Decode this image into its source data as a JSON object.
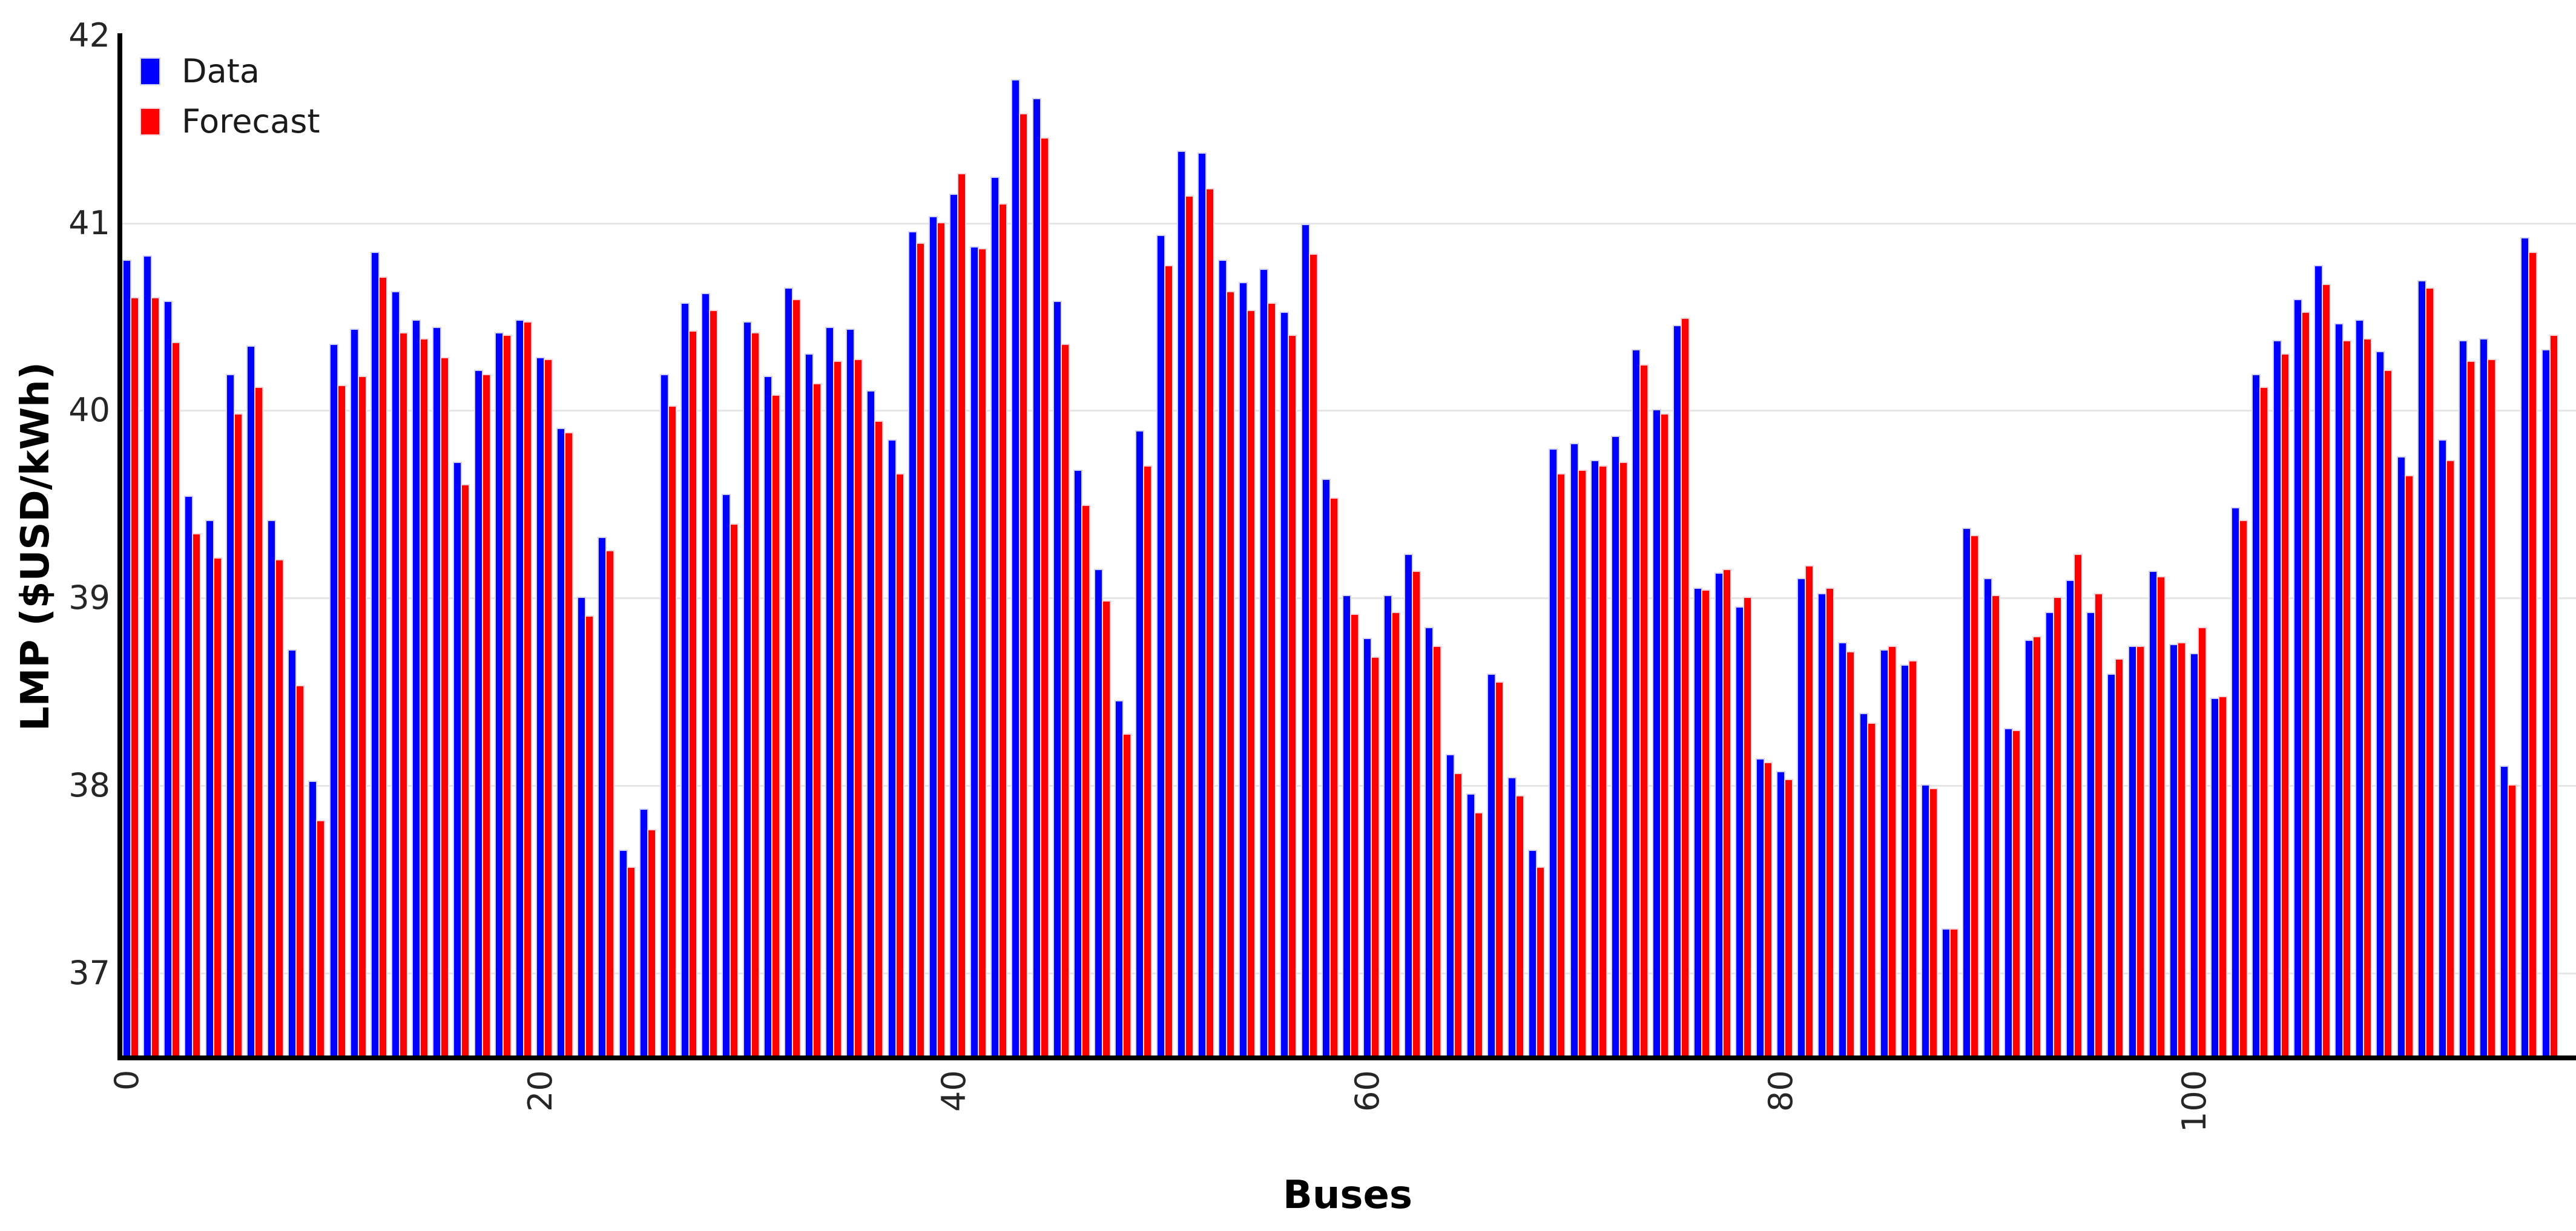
{
  "chart_data": {
    "type": "bar",
    "title": "",
    "xlabel": "Buses",
    "ylabel": "LMP ($USD/kWh)",
    "ylim": [
      36.55,
      42
    ],
    "yticks": [
      37,
      38,
      39,
      40,
      41,
      42
    ],
    "xticks": [
      0,
      20,
      40,
      60,
      80,
      100
    ],
    "grid": "horizontal",
    "legend_position": "upper-left",
    "n_buses": 118,
    "series": [
      {
        "name": "Data",
        "color": "#0000ff",
        "values": [
          40.8,
          40.82,
          40.58,
          39.54,
          39.41,
          40.19,
          40.34,
          39.41,
          38.72,
          38.02,
          40.35,
          40.43,
          40.84,
          40.63,
          40.48,
          40.44,
          39.72,
          40.21,
          40.41,
          40.48,
          40.28,
          39.9,
          39.0,
          39.32,
          37.65,
          37.87,
          40.19,
          40.57,
          40.62,
          39.55,
          40.47,
          40.18,
          40.65,
          40.3,
          40.44,
          40.43,
          40.1,
          39.84,
          40.95,
          41.03,
          41.15,
          40.87,
          41.24,
          41.76,
          41.66,
          40.58,
          39.68,
          39.15,
          38.45,
          39.89,
          40.93,
          41.38,
          41.37,
          40.8,
          40.68,
          40.75,
          40.52,
          40.99,
          39.63,
          39.01,
          38.78,
          39.01,
          39.23,
          38.84,
          38.16,
          37.95,
          38.59,
          38.04,
          37.65,
          39.79,
          39.82,
          39.73,
          39.86,
          40.32,
          40.0,
          40.45,
          39.05,
          39.13,
          38.95,
          38.14,
          38.07,
          39.1,
          39.02,
          38.76,
          38.38,
          38.72,
          38.64,
          38.0,
          37.23,
          39.37,
          39.1,
          38.3,
          38.77,
          38.92,
          39.09,
          38.92,
          38.59,
          38.74,
          39.14,
          38.75,
          38.7,
          38.46,
          39.48,
          40.19,
          40.37,
          40.59,
          40.77,
          40.46,
          40.48,
          40.31,
          39.75,
          40.69,
          39.84,
          40.37,
          40.38,
          38.1,
          40.92,
          40.32
        ]
      },
      {
        "name": "Forecast",
        "color": "#ff0000",
        "values": [
          40.6,
          40.6,
          40.36,
          39.34,
          39.21,
          39.98,
          40.12,
          39.2,
          38.53,
          37.81,
          40.13,
          40.18,
          40.71,
          40.41,
          40.38,
          40.28,
          39.6,
          40.19,
          40.4,
          40.47,
          40.27,
          39.88,
          38.9,
          39.25,
          37.56,
          37.76,
          40.02,
          40.42,
          40.53,
          39.39,
          40.41,
          40.08,
          40.59,
          40.14,
          40.26,
          40.27,
          39.94,
          39.66,
          40.89,
          41.0,
          41.26,
          40.86,
          41.1,
          41.58,
          41.45,
          40.35,
          39.49,
          38.98,
          38.27,
          39.7,
          40.77,
          41.14,
          41.18,
          40.63,
          40.53,
          40.57,
          40.4,
          40.83,
          39.53,
          38.91,
          38.68,
          38.92,
          39.14,
          38.74,
          38.06,
          37.85,
          38.55,
          37.94,
          37.56,
          39.66,
          39.68,
          39.7,
          39.72,
          40.24,
          39.98,
          40.49,
          39.04,
          39.15,
          39.0,
          38.12,
          38.03,
          39.17,
          39.05,
          38.71,
          38.33,
          38.74,
          38.66,
          37.98,
          37.23,
          39.33,
          39.01,
          38.29,
          38.79,
          39.0,
          39.23,
          39.02,
          38.67,
          38.74,
          39.11,
          38.76,
          38.84,
          38.47,
          39.41,
          40.12,
          40.3,
          40.52,
          40.67,
          40.37,
          40.38,
          40.21,
          39.65,
          40.65,
          39.73,
          40.26,
          40.27,
          38.0,
          40.84,
          40.4
        ]
      }
    ]
  },
  "legend": {
    "items": [
      {
        "label": "Data",
        "color": "#0000ff"
      },
      {
        "label": "Forecast",
        "color": "#ff0000"
      }
    ]
  },
  "axes": {
    "x_label": "Buses",
    "y_label": "LMP ($USD/kWh)"
  },
  "colors": {
    "blue_bar": "#0000ff",
    "red_bar": "#ff0000",
    "blue_halo": "#d2d2f8",
    "red_halo": "#f8d2d6",
    "gridline": "#e6e6e6",
    "axis": "#000000",
    "tick_text": "#262626"
  }
}
